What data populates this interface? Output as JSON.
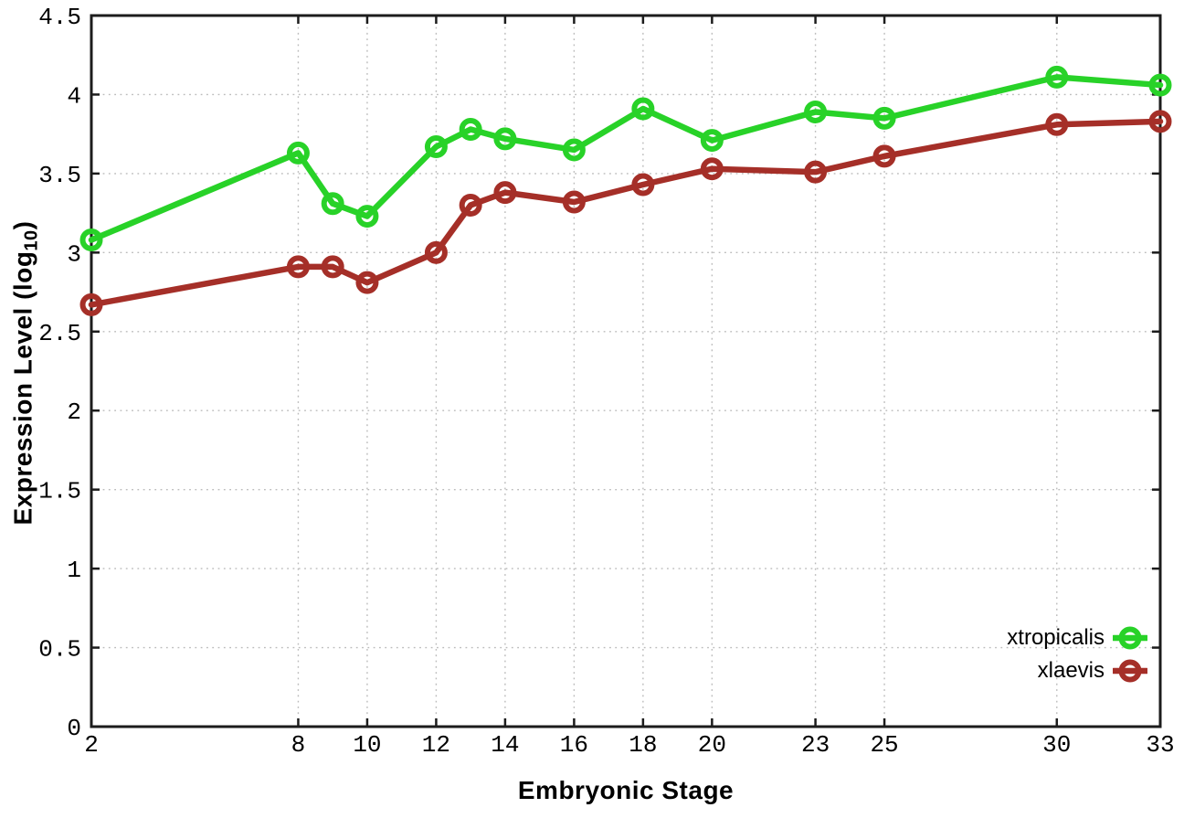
{
  "chart_data": {
    "type": "line",
    "title": "",
    "xlabel": "Embryonic Stage",
    "ylabel": "Expression Level (log10)",
    "ylabel_parts": {
      "pre": "Expression Level (log",
      "sub": "10",
      "post": ")"
    },
    "x": [
      2,
      8,
      9,
      10,
      12,
      13,
      14,
      16,
      18,
      20,
      23,
      25,
      30,
      33
    ],
    "series": [
      {
        "name": "xtropicalis",
        "color": "#28d228",
        "values": [
          3.08,
          3.63,
          3.31,
          3.23,
          3.67,
          3.78,
          3.72,
          3.65,
          3.91,
          3.71,
          3.89,
          3.85,
          4.11,
          4.06
        ]
      },
      {
        "name": "xlaevis",
        "color": "#a52f28",
        "values": [
          2.67,
          2.91,
          2.91,
          2.81,
          3.0,
          3.3,
          3.38,
          3.32,
          3.43,
          3.53,
          3.51,
          3.61,
          3.81,
          3.83
        ]
      }
    ],
    "xlim": [
      2,
      33
    ],
    "ylim": [
      0,
      4.5
    ],
    "x_ticks": [
      2,
      8,
      10,
      12,
      14,
      16,
      18,
      20,
      23,
      25,
      30,
      33
    ],
    "x_tick_labels": [
      "2",
      "8",
      "10",
      "12",
      "14",
      "16",
      "18",
      "20",
      "23",
      "25",
      "30",
      "33"
    ],
    "y_ticks": [
      0,
      0.5,
      1,
      1.5,
      2,
      2.5,
      3,
      3.5,
      4,
      4.5
    ],
    "y_tick_labels": [
      "0",
      "0.5",
      "1",
      "1.5",
      "2",
      "2.5",
      "3",
      "3.5",
      "4",
      "4.5"
    ],
    "grid": true,
    "legend_position": "inside-bottom-right"
  },
  "colors": {
    "background": "#ffffff",
    "grid": "#bbbbbb",
    "axis": "#1c1c1c",
    "text": "#000000"
  }
}
